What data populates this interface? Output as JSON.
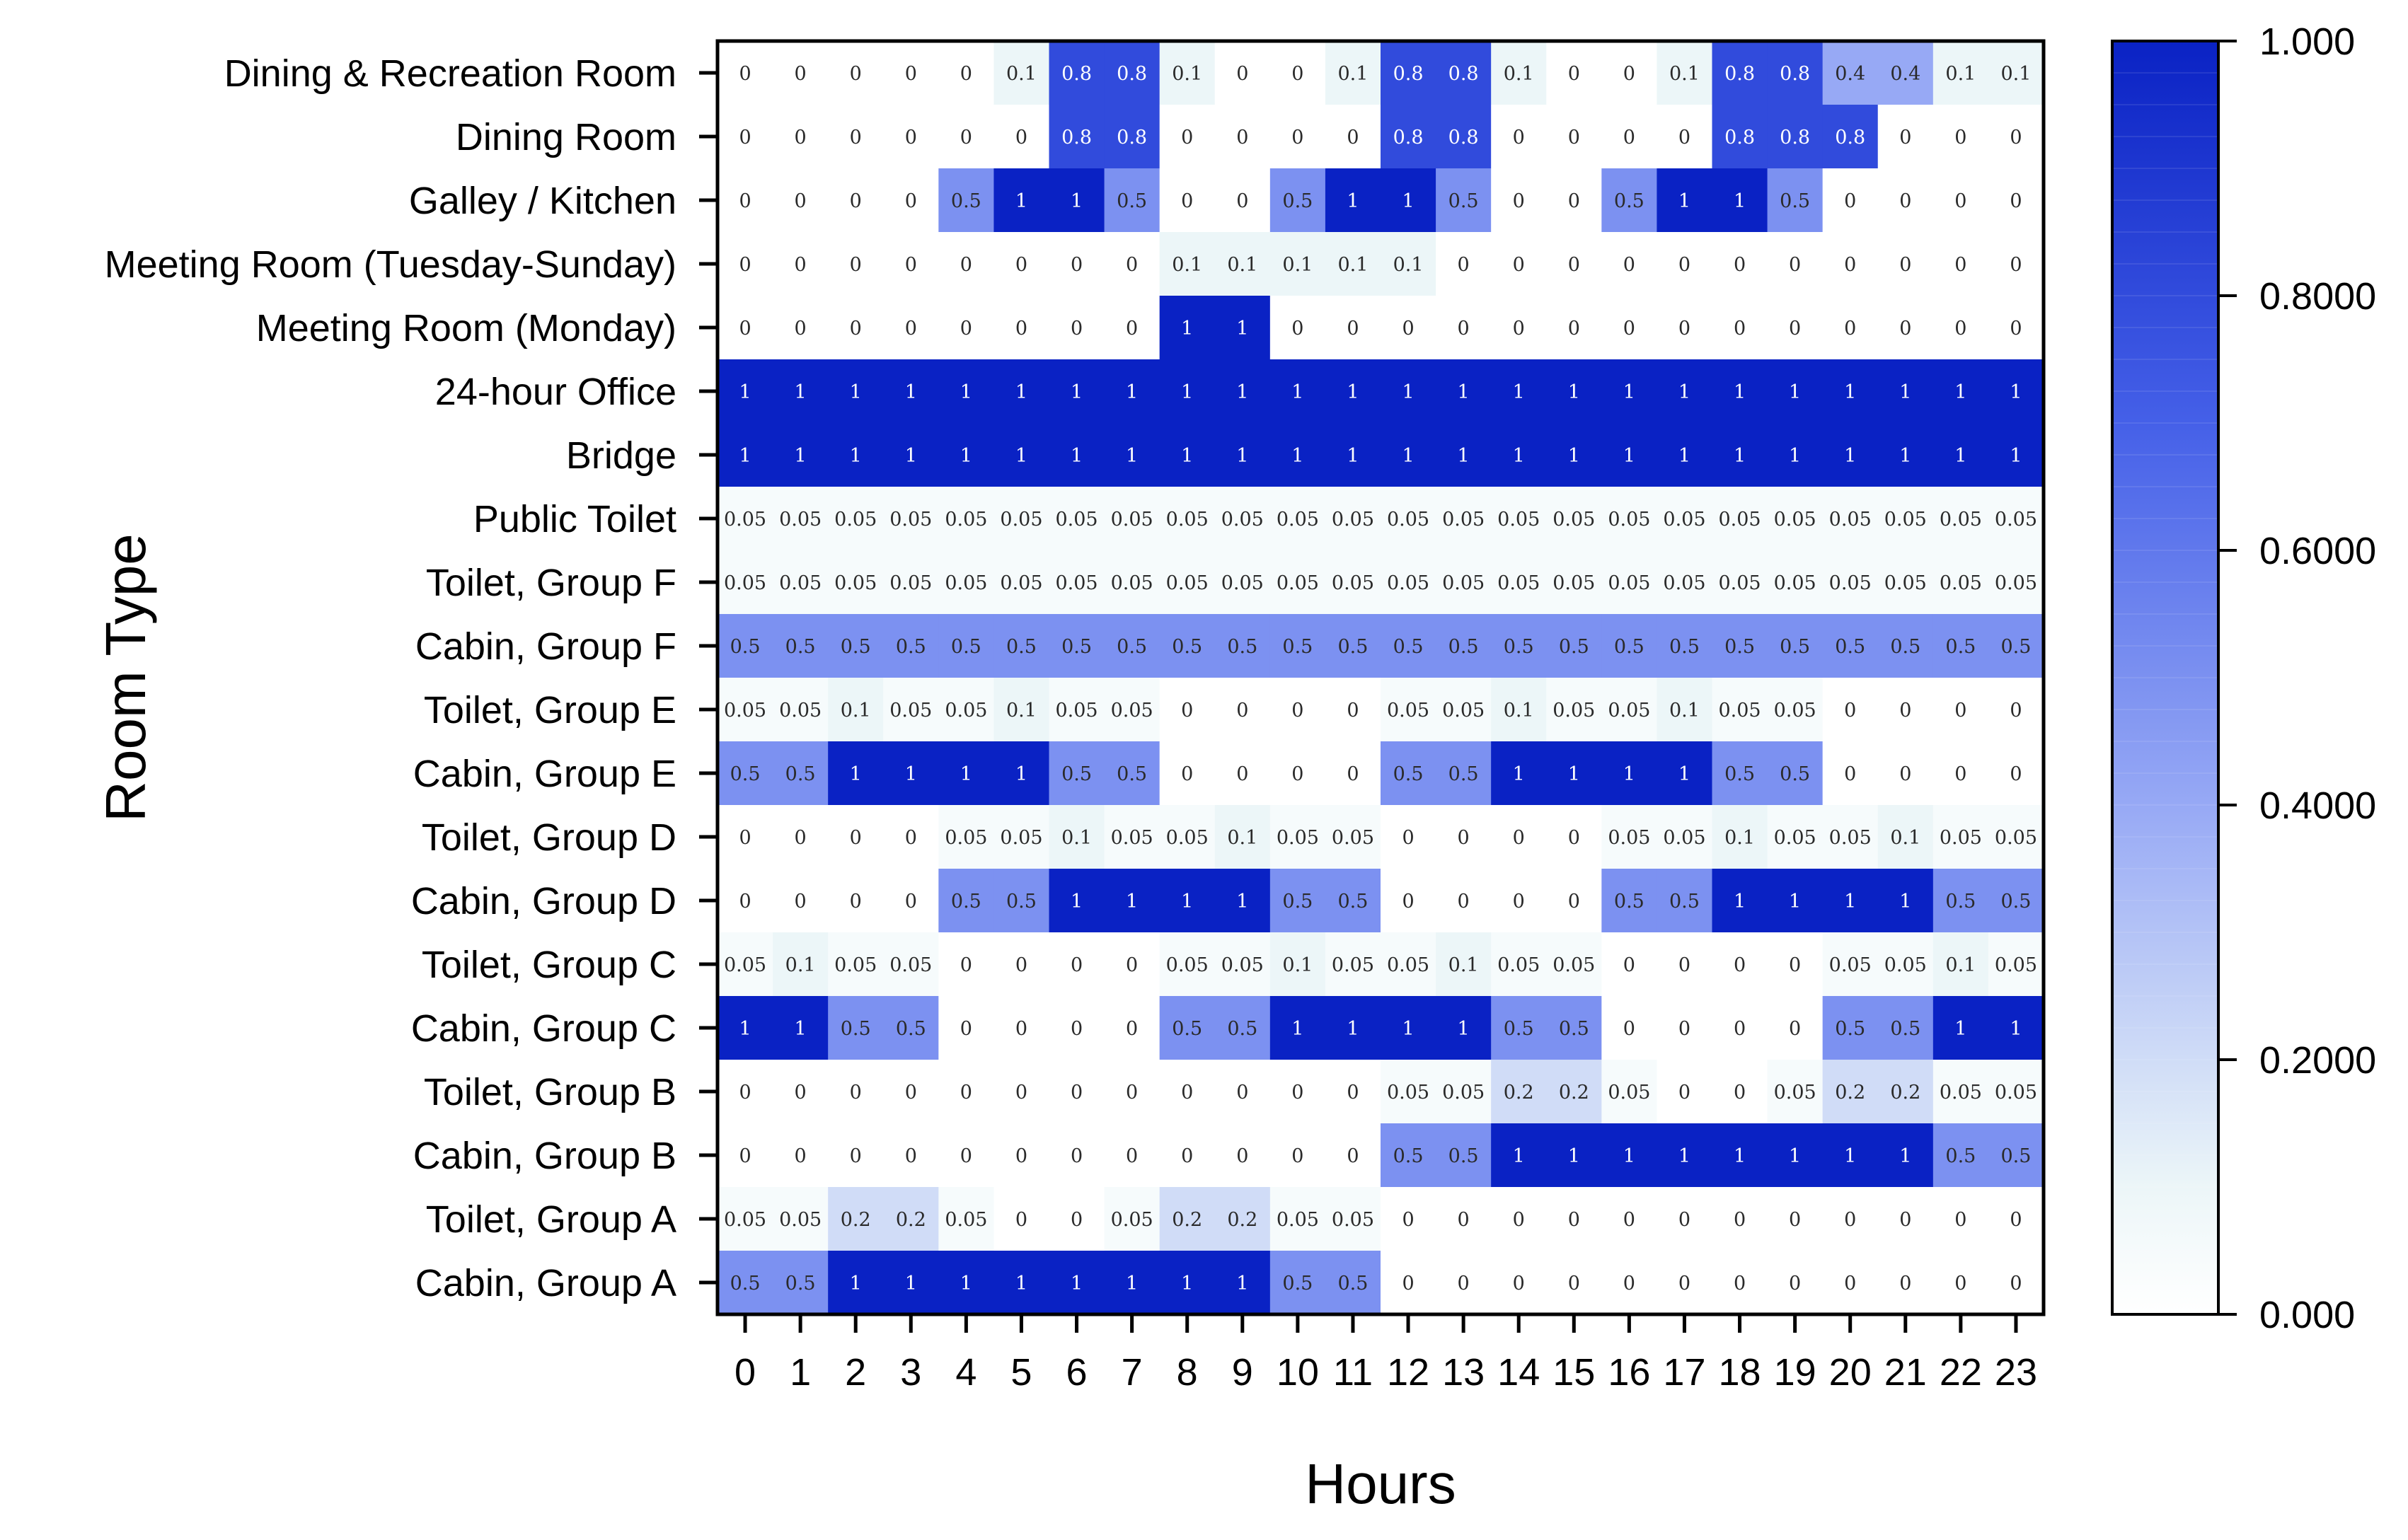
{
  "chart_data": {
    "type": "heatmap",
    "xlabel": "Hours",
    "ylabel": "Room Type",
    "x": [
      "0",
      "1",
      "2",
      "3",
      "4",
      "5",
      "6",
      "7",
      "8",
      "9",
      "10",
      "11",
      "12",
      "13",
      "14",
      "15",
      "16",
      "17",
      "18",
      "19",
      "20",
      "21",
      "22",
      "23"
    ],
    "y": [
      "Dining & Recreation Room",
      "Dining Room",
      "Galley / Kitchen",
      "Meeting Room (Tuesday-Sunday)",
      "Meeting Room (Monday)",
      "24-hour Office",
      "Bridge",
      "Public Toilet",
      "Toilet, Group F",
      "Cabin, Group F",
      "Toilet, Group E",
      "Cabin, Group E",
      "Toilet, Group D",
      "Cabin, Group D",
      "Toilet, Group C",
      "Cabin, Group C",
      "Toilet, Group B",
      "Cabin, Group B",
      "Toilet, Group A",
      "Cabin, Group A"
    ],
    "values": [
      [
        0,
        0,
        0,
        0,
        0,
        0.1,
        0.8,
        0.8,
        0.1,
        0,
        0,
        0.1,
        0.8,
        0.8,
        0.1,
        0,
        0,
        0.1,
        0.8,
        0.8,
        0.4,
        0.4,
        0.1,
        0.1
      ],
      [
        0,
        0,
        0,
        0,
        0,
        0,
        0.8,
        0.8,
        0,
        0,
        0,
        0,
        0.8,
        0.8,
        0,
        0,
        0,
        0,
        0.8,
        0.8,
        0.8,
        0,
        0,
        0
      ],
      [
        0,
        0,
        0,
        0,
        0.5,
        1,
        1,
        0.5,
        0,
        0,
        0.5,
        1,
        1,
        0.5,
        0,
        0,
        0.5,
        1,
        1,
        0.5,
        0,
        0,
        0,
        0
      ],
      [
        0,
        0,
        0,
        0,
        0,
        0,
        0,
        0,
        0.1,
        0.1,
        0.1,
        0.1,
        0.1,
        0,
        0,
        0,
        0,
        0,
        0,
        0,
        0,
        0,
        0,
        0
      ],
      [
        0,
        0,
        0,
        0,
        0,
        0,
        0,
        0,
        1,
        1,
        0,
        0,
        0,
        0,
        0,
        0,
        0,
        0,
        0,
        0,
        0,
        0,
        0,
        0
      ],
      [
        1,
        1,
        1,
        1,
        1,
        1,
        1,
        1,
        1,
        1,
        1,
        1,
        1,
        1,
        1,
        1,
        1,
        1,
        1,
        1,
        1,
        1,
        1,
        1
      ],
      [
        1,
        1,
        1,
        1,
        1,
        1,
        1,
        1,
        1,
        1,
        1,
        1,
        1,
        1,
        1,
        1,
        1,
        1,
        1,
        1,
        1,
        1,
        1,
        1
      ],
      [
        0.05,
        0.05,
        0.05,
        0.05,
        0.05,
        0.05,
        0.05,
        0.05,
        0.05,
        0.05,
        0.05,
        0.05,
        0.05,
        0.05,
        0.05,
        0.05,
        0.05,
        0.05,
        0.05,
        0.05,
        0.05,
        0.05,
        0.05,
        0.05
      ],
      [
        0.05,
        0.05,
        0.05,
        0.05,
        0.05,
        0.05,
        0.05,
        0.05,
        0.05,
        0.05,
        0.05,
        0.05,
        0.05,
        0.05,
        0.05,
        0.05,
        0.05,
        0.05,
        0.05,
        0.05,
        0.05,
        0.05,
        0.05,
        0.05
      ],
      [
        0.5,
        0.5,
        0.5,
        0.5,
        0.5,
        0.5,
        0.5,
        0.5,
        0.5,
        0.5,
        0.5,
        0.5,
        0.5,
        0.5,
        0.5,
        0.5,
        0.5,
        0.5,
        0.5,
        0.5,
        0.5,
        0.5,
        0.5,
        0.5
      ],
      [
        0.05,
        0.05,
        0.1,
        0.05,
        0.05,
        0.1,
        0.05,
        0.05,
        0,
        0,
        0,
        0,
        0.05,
        0.05,
        0.1,
        0.05,
        0.05,
        0.1,
        0.05,
        0.05,
        0,
        0,
        0,
        0
      ],
      [
        0.5,
        0.5,
        1,
        1,
        1,
        1,
        0.5,
        0.5,
        0,
        0,
        0,
        0,
        0.5,
        0.5,
        1,
        1,
        1,
        1,
        0.5,
        0.5,
        0,
        0,
        0,
        0
      ],
      [
        0,
        0,
        0,
        0,
        0.05,
        0.05,
        0.1,
        0.05,
        0.05,
        0.1,
        0.05,
        0.05,
        0,
        0,
        0,
        0,
        0.05,
        0.05,
        0.1,
        0.05,
        0.05,
        0.1,
        0.05,
        0.05
      ],
      [
        0,
        0,
        0,
        0,
        0.5,
        0.5,
        1,
        1,
        1,
        1,
        0.5,
        0.5,
        0,
        0,
        0,
        0,
        0.5,
        0.5,
        1,
        1,
        1,
        1,
        0.5,
        0.5
      ],
      [
        0.05,
        0.1,
        0.05,
        0.05,
        0,
        0,
        0,
        0,
        0.05,
        0.05,
        0.1,
        0.05,
        0.05,
        0.1,
        0.05,
        0.05,
        0,
        0,
        0,
        0,
        0.05,
        0.05,
        0.1,
        0.05
      ],
      [
        1,
        1,
        0.5,
        0.5,
        0,
        0,
        0,
        0,
        0.5,
        0.5,
        1,
        1,
        1,
        1,
        0.5,
        0.5,
        0,
        0,
        0,
        0,
        0.5,
        0.5,
        1,
        1
      ],
      [
        0,
        0,
        0,
        0,
        0,
        0,
        0,
        0,
        0,
        0,
        0,
        0,
        0.05,
        0.05,
        0.2,
        0.2,
        0.05,
        0,
        0,
        0.05,
        0.2,
        0.2,
        0.05,
        0.05
      ],
      [
        0,
        0,
        0,
        0,
        0,
        0,
        0,
        0,
        0,
        0,
        0,
        0,
        0.5,
        0.5,
        1,
        1,
        1,
        1,
        1,
        1,
        1,
        1,
        0.5,
        0.5
      ],
      [
        0.05,
        0.05,
        0.2,
        0.2,
        0.05,
        0,
        0,
        0.05,
        0.2,
        0.2,
        0.05,
        0.05,
        0,
        0,
        0,
        0,
        0,
        0,
        0,
        0,
        0,
        0,
        0,
        0
      ],
      [
        0.5,
        0.5,
        1,
        1,
        1,
        1,
        1,
        1,
        1,
        1,
        0.5,
        0.5,
        0,
        0,
        0,
        0,
        0,
        0,
        0,
        0,
        0,
        0,
        0,
        0
      ]
    ],
    "value_range": [
      0,
      1
    ],
    "colorbar": {
      "ticks": [
        0,
        0.2,
        0.4,
        0.6,
        0.8,
        1
      ],
      "tick_labels": [
        "0.000",
        "0.2000",
        "0.4000",
        "0.6000",
        "0.8000",
        "1.000"
      ],
      "colors": {
        "low": "#ffffff",
        "high": "#0a22c4"
      }
    },
    "grid": false,
    "legend": "right"
  }
}
